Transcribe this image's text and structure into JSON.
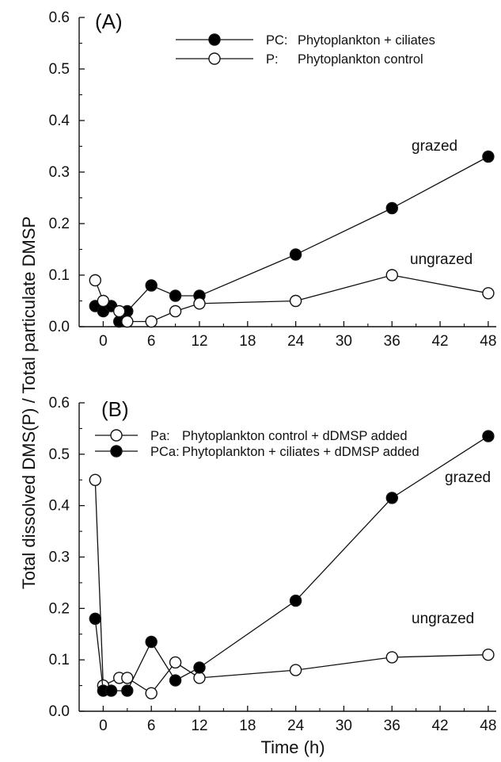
{
  "ylabel": "Total dissolved DMS(P) / Total particulate DMSP",
  "xlabel": "Time (h)",
  "chart_data": [
    {
      "type": "line",
      "panel_label": "(A)",
      "xlim": [
        -3,
        49
      ],
      "ylim": [
        0,
        0.6
      ],
      "x_ticks": [
        0,
        6,
        12,
        18,
        24,
        30,
        36,
        42,
        48
      ],
      "y_ticks": [
        0.0,
        0.1,
        0.2,
        0.3,
        0.4,
        0.5,
        0.6
      ],
      "y_tick_labels": [
        "0.0",
        "0.1",
        "0.2",
        "0.3",
        "0.4",
        "0.5",
        "0.6"
      ],
      "legend_position": "top-right",
      "series": [
        {
          "name": "PC: Phytoplankton + ciliates",
          "legend_code": "PC:",
          "legend_desc": "Phytoplankton + ciliates",
          "marker": "filled-circle",
          "annotation": "grazed",
          "x": [
            -1,
            0,
            1,
            2,
            3,
            6,
            9,
            12,
            24,
            36,
            48
          ],
          "y": [
            0.04,
            0.03,
            0.04,
            0.01,
            0.03,
            0.08,
            0.06,
            0.06,
            0.14,
            0.23,
            0.33
          ]
        },
        {
          "name": "P: Phytoplankton control",
          "legend_code": "P:",
          "legend_desc": "Phytoplankton control",
          "marker": "open-circle",
          "annotation": "ungrazed",
          "x": [
            -1,
            0,
            2,
            3,
            6,
            9,
            12,
            24,
            36,
            48
          ],
          "y": [
            0.09,
            0.05,
            0.03,
            0.01,
            0.01,
            0.03,
            0.045,
            0.05,
            0.1,
            0.065
          ]
        }
      ]
    },
    {
      "type": "line",
      "panel_label": "(B)",
      "xlim": [
        -3,
        49
      ],
      "ylim": [
        0,
        0.6
      ],
      "x_ticks": [
        0,
        6,
        12,
        18,
        24,
        30,
        36,
        42,
        48
      ],
      "y_ticks": [
        0.0,
        0.1,
        0.2,
        0.3,
        0.4,
        0.5,
        0.6
      ],
      "y_tick_labels": [
        "0.0",
        "0.1",
        "0.2",
        "0.3",
        "0.4",
        "0.5",
        "0.6"
      ],
      "legend_position": "top-left",
      "series": [
        {
          "name": "Pa: Phytoplankton control + dDMSP added",
          "legend_code": "Pa:",
          "legend_desc": "Phytoplankton control + dDMSP added",
          "marker": "open-circle",
          "annotation": "ungrazed",
          "x": [
            -1,
            0,
            2,
            3,
            6,
            9,
            12,
            24,
            36,
            48
          ],
          "y": [
            0.45,
            0.05,
            0.065,
            0.065,
            0.035,
            0.095,
            0.065,
            0.08,
            0.105,
            0.11
          ]
        },
        {
          "name": "PCa: Phytoplankton + ciliates + dDMSP added",
          "legend_code": "PCa:",
          "legend_desc": "Phytoplankton + ciliates + dDMSP added",
          "marker": "filled-circle",
          "annotation": "grazed",
          "x": [
            -1,
            0,
            1,
            3,
            6,
            9,
            12,
            24,
            36,
            48
          ],
          "y": [
            0.18,
            0.04,
            0.04,
            0.04,
            0.135,
            0.06,
            0.085,
            0.215,
            0.415,
            0.535
          ]
        }
      ]
    }
  ]
}
